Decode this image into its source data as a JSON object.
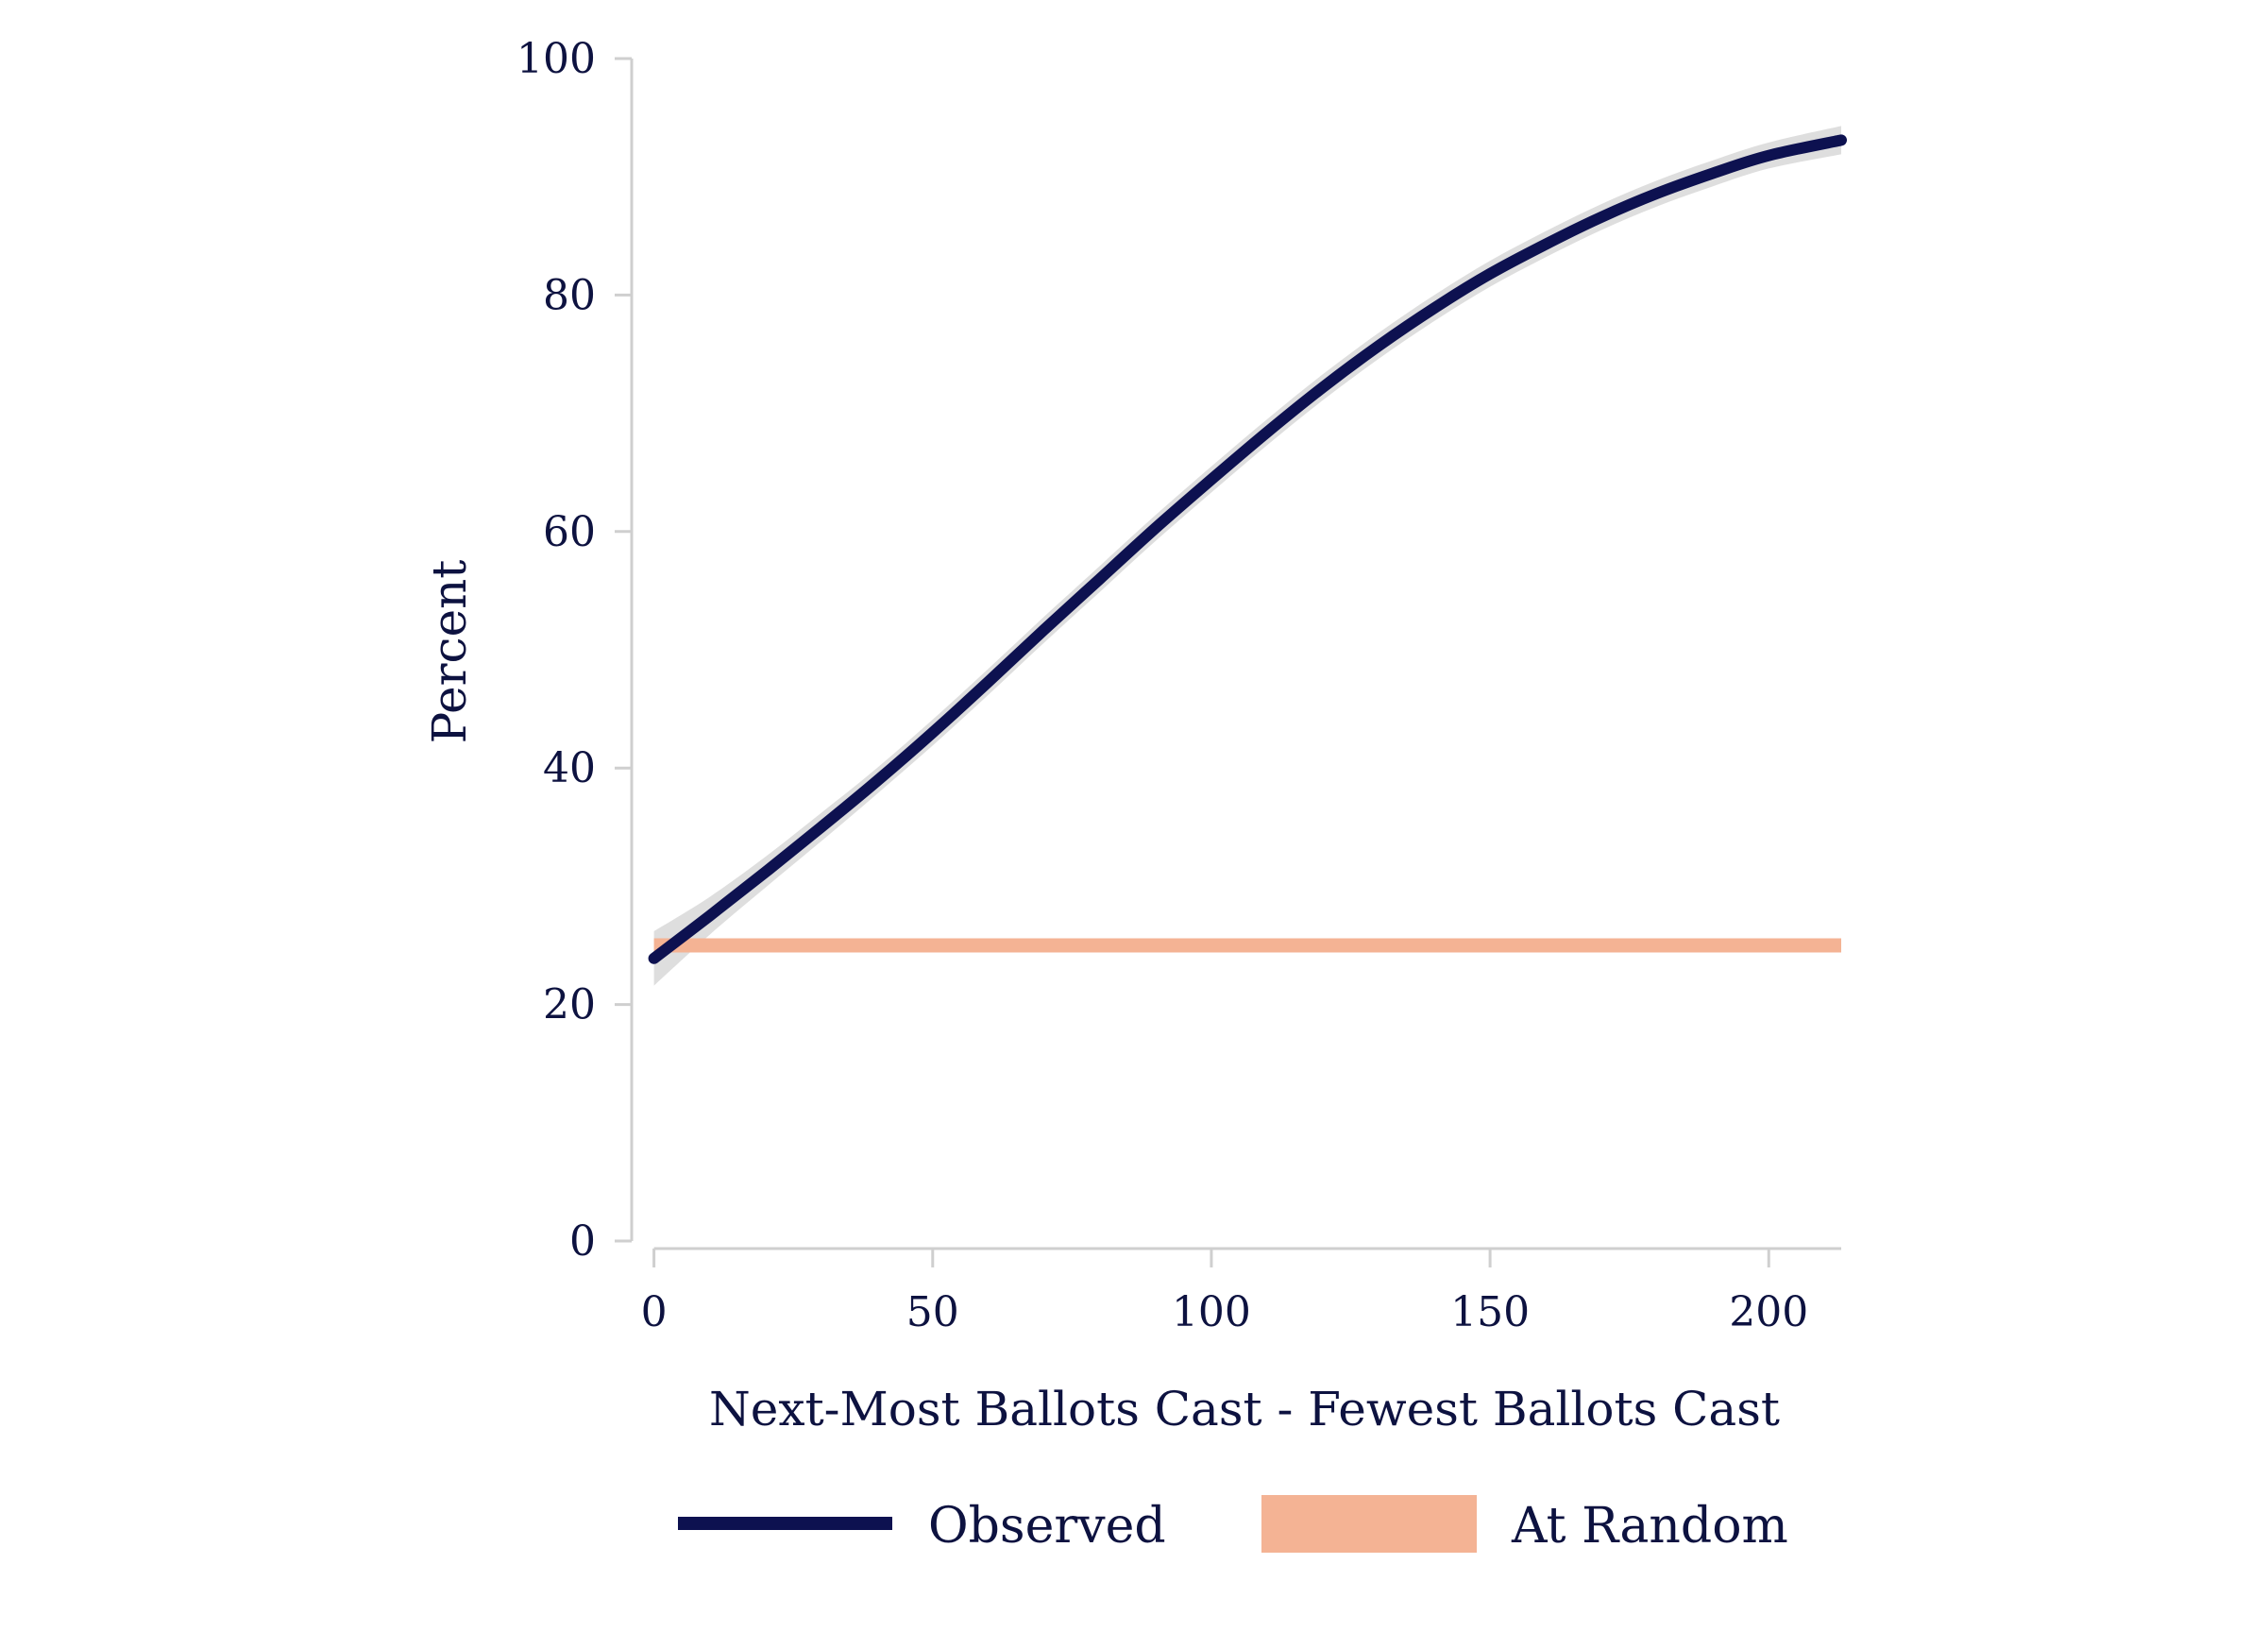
{
  "chart_data": {
    "type": "line",
    "xlabel": "Next-Most Ballots Cast - Fewest Ballots Cast",
    "ylabel": "Percent",
    "xlim": [
      -4,
      213
    ],
    "ylim": [
      0,
      100
    ],
    "x_ticks": [
      0,
      50,
      100,
      150,
      200
    ],
    "y_ticks": [
      0,
      20,
      40,
      60,
      80,
      100
    ],
    "grid": false,
    "legend_position": "bottom",
    "series": [
      {
        "name": "Observed",
        "color": "#0d1150",
        "band_color": "#dedede",
        "x": [
          0,
          10,
          20,
          30,
          40,
          50,
          60,
          70,
          80,
          90,
          100,
          110,
          120,
          130,
          140,
          150,
          160,
          170,
          180,
          190,
          200,
          213
        ],
        "y": [
          23.9,
          27.5,
          31.2,
          35.0,
          38.9,
          43.0,
          47.3,
          51.7,
          56.0,
          60.3,
          64.4,
          68.4,
          72.2,
          75.7,
          78.9,
          81.8,
          84.3,
          86.6,
          88.6,
          90.3,
          91.8,
          93.1
        ],
        "ci_half_width": [
          2.3,
          1.6,
          1.3,
          1.2,
          1.1,
          1.1,
          1.1,
          1.1,
          1.1,
          1.1,
          1.1,
          1.1,
          1.1,
          1.1,
          1.1,
          1.1,
          1.1,
          1.1,
          1.1,
          1.1,
          1.1,
          1.2
        ]
      },
      {
        "name": "At Random",
        "color": "#f4b394",
        "x": [
          0,
          213
        ],
        "y": [
          25,
          25
        ]
      }
    ]
  }
}
